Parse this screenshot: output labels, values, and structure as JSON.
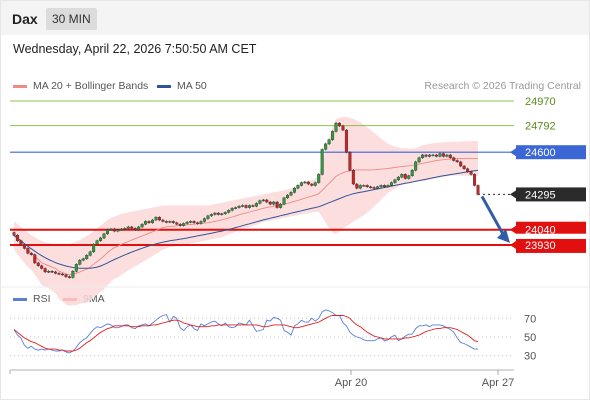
{
  "header": {
    "symbol": "Dax",
    "interval": "30 MIN",
    "datetime": "Wednesday, April 22, 2026 7:50:50 AM CET"
  },
  "legend": {
    "ma20": "MA 20 + Bollinger Bands",
    "ma50": "MA 50",
    "credit": "Research © 2026 Trading Central",
    "colors": {
      "ma20": "#f08a84",
      "ma50": "#2f5596",
      "bands": "#fcd8d8"
    }
  },
  "rsi_legend": {
    "rsi": "RSI",
    "ma9": "9MA",
    "colors": {
      "rsi": "#5a7fd6",
      "ma9": "#e02020"
    }
  },
  "chart_data": [
    {
      "type": "candlestick",
      "title": "",
      "ylim": [
        23655,
        25035
      ],
      "price_levels": [
        {
          "value": 24970,
          "label": "24970",
          "style": "resistance",
          "color": "#8bc34a"
        },
        {
          "value": 24792,
          "label": "24792",
          "style": "resistance",
          "color": "#8bc34a"
        },
        {
          "value": 24600,
          "label": "24600",
          "style": "pivot",
          "color": "#3a66d6"
        },
        {
          "value": 24295,
          "label": "24295",
          "style": "last",
          "color": "#2b2b2b"
        },
        {
          "value": 24040,
          "label": "24040",
          "style": "support",
          "color": "#e01010"
        },
        {
          "value": 23930,
          "label": "23930",
          "style": "support",
          "color": "#e01010"
        }
      ],
      "x_ticks": [
        "Apr 20",
        "Apr 27"
      ],
      "close": [
        24000,
        23960,
        23930,
        23905,
        23870,
        23860,
        23800,
        23780,
        23760,
        23735,
        23740,
        23735,
        23725,
        23720,
        23715,
        23700,
        23695,
        23740,
        23790,
        23820,
        23830,
        23855,
        23880,
        23935,
        23960,
        23980,
        24010,
        24040,
        24045,
        24030,
        24040,
        24045,
        24050,
        24060,
        24050,
        24040,
        24060,
        24080,
        24100,
        24090,
        24110,
        24130,
        24110,
        24100,
        24095,
        24100,
        24090,
        24080,
        24070,
        24085,
        24095,
        24100,
        24090,
        24085,
        24100,
        24120,
        24140,
        24150,
        24160,
        24150,
        24155,
        24165,
        24180,
        24195,
        24200,
        24210,
        24215,
        24200,
        24215,
        24210,
        24230,
        24250,
        24255,
        24240,
        24225,
        24240,
        24200,
        24225,
        24270,
        24290,
        24310,
        24340,
        24360,
        24380,
        24385,
        24370,
        24360,
        24380,
        24440,
        24620,
        24660,
        24690,
        24750,
        24810,
        24790,
        24760,
        24600,
        24470,
        24370,
        24340,
        24360,
        24360,
        24350,
        24345,
        24340,
        24350,
        24360,
        24350,
        24360,
        24380,
        24400,
        24420,
        24440,
        24410,
        24430,
        24470,
        24530,
        24560,
        24580,
        24570,
        24580,
        24580,
        24570,
        24590,
        24570,
        24580,
        24560,
        24540,
        24530,
        24500,
        24480,
        24460,
        24440,
        24360,
        24295
      ],
      "ma20": [
        24000,
        23970,
        23945,
        23920,
        23895,
        23875,
        23850,
        23825,
        23800,
        23790,
        23780,
        23770,
        23760,
        23740,
        23730,
        23720,
        23715,
        23720,
        23725,
        23735,
        23745,
        23755,
        23770,
        23790,
        23810,
        23830,
        23850,
        23875,
        23895,
        23910,
        23920,
        23935,
        23945,
        23955,
        23965,
        23975,
        23985,
        23995,
        24005,
        24015,
        24025,
        24035,
        24045,
        24055,
        24060,
        24065,
        24065,
        24068,
        24070,
        24072,
        24075,
        24078,
        24080,
        24082,
        24085,
        24088,
        24090,
        24095,
        24100,
        24105,
        24110,
        24118,
        24125,
        24132,
        24140,
        24148,
        24155,
        24160,
        24168,
        24175,
        24180,
        24188,
        24195,
        24200,
        24205,
        24210,
        24215,
        24220,
        24225,
        24230,
        24238,
        24245,
        24252,
        24260,
        24268,
        24275,
        24282,
        24290,
        24300,
        24325,
        24350,
        24375,
        24400,
        24425,
        24440,
        24452,
        24460,
        24465,
        24470,
        24472,
        24472,
        24472,
        24472,
        24472,
        24473,
        24475,
        24478,
        24480,
        24483,
        24486,
        24490,
        24493,
        24496,
        24499,
        24502,
        24505,
        24510,
        24515,
        24520,
        24525,
        24530,
        24535,
        24540,
        24543,
        24546,
        24549,
        24551,
        24553,
        24554,
        24554,
        24554,
        24554,
        24554,
        24554,
        24554
      ],
      "ma50": [
        24000,
        23980,
        23960,
        23940,
        23920,
        23902,
        23885,
        23868,
        23852,
        23838,
        23825,
        23813,
        23802,
        23793,
        23785,
        23778,
        23772,
        23767,
        23764,
        23762,
        23761,
        23761,
        23762,
        23765,
        23770,
        23778,
        23788,
        23800,
        23813,
        23825,
        23836,
        23847,
        23858,
        23868,
        23878,
        23888,
        23897,
        23906,
        23915,
        23923,
        23931,
        23938,
        23944,
        23950,
        23955,
        23960,
        23964,
        23968,
        23972,
        23976,
        23980,
        23985,
        23990,
        23995,
        24000,
        24005,
        24010,
        24015,
        24020,
        24025,
        24030,
        24036,
        24042,
        24048,
        24055,
        24062,
        24069,
        24076,
        24083,
        24090,
        24097,
        24104,
        24111,
        24117,
        24123,
        24129,
        24135,
        24141,
        24147,
        24153,
        24159,
        24165,
        24171,
        24177,
        24183,
        24189,
        24195,
        24200,
        24206,
        24215,
        24225,
        24235,
        24245,
        24255,
        24265,
        24275,
        24285,
        24292,
        24300,
        24305,
        24310,
        24315,
        24320,
        24325,
        24330,
        24335,
        24340,
        24345,
        24350,
        24355,
        24360,
        24365,
        24370,
        24375,
        24380,
        24385,
        24390,
        24395,
        24400,
        24405,
        24410,
        24415,
        24420,
        24425,
        24430,
        24434,
        24438,
        24442,
        24446,
        24450,
        24454,
        24458,
        24462,
        24466,
        24470
      ],
      "bb_upper": [
        24100,
        24080,
        24060,
        24040,
        24020,
        24000,
        23985,
        23970,
        23960,
        23950,
        23945,
        23940,
        23940,
        23940,
        23940,
        23940,
        23940,
        23945,
        23955,
        23965,
        23980,
        23995,
        24010,
        24030,
        24050,
        24070,
        24090,
        24110,
        24125,
        24135,
        24145,
        24155,
        24160,
        24165,
        24170,
        24175,
        24180,
        24185,
        24190,
        24195,
        24200,
        24205,
        24210,
        24215,
        24215,
        24215,
        24215,
        24215,
        24215,
        24215,
        24215,
        24215,
        24215,
        24215,
        24215,
        24215,
        24215,
        24220,
        24225,
        24230,
        24235,
        24240,
        24245,
        24250,
        24255,
        24260,
        24265,
        24270,
        24275,
        24280,
        24285,
        24290,
        24295,
        24300,
        24305,
        24310,
        24315,
        24320,
        24325,
        24330,
        24340,
        24350,
        24360,
        24370,
        24380,
        24390,
        24400,
        24410,
        24430,
        24520,
        24610,
        24700,
        24780,
        24840,
        24850,
        24855,
        24855,
        24850,
        24840,
        24830,
        24815,
        24800,
        24780,
        24760,
        24740,
        24720,
        24700,
        24680,
        24660,
        24650,
        24640,
        24635,
        24630,
        24628,
        24626,
        24625,
        24630,
        24640,
        24650,
        24655,
        24660,
        24665,
        24668,
        24670,
        24672,
        24673,
        24674,
        24675,
        24676,
        24677,
        24678,
        24679,
        24680,
        24680,
        24680
      ],
      "bb_lower": [
        23900,
        23860,
        23830,
        23800,
        23770,
        23750,
        23715,
        23680,
        23640,
        23630,
        23615,
        23600,
        23580,
        23540,
        23520,
        23500,
        23490,
        23495,
        23495,
        23505,
        23510,
        23515,
        23530,
        23550,
        23570,
        23590,
        23610,
        23640,
        23665,
        23685,
        23695,
        23715,
        23730,
        23745,
        23760,
        23775,
        23790,
        23805,
        23820,
        23835,
        23850,
        23865,
        23880,
        23895,
        23905,
        23915,
        23915,
        23921,
        23925,
        23929,
        23935,
        23941,
        23945,
        23949,
        23955,
        23961,
        23965,
        23970,
        23975,
        23980,
        23985,
        23996,
        24005,
        24014,
        24025,
        24036,
        24045,
        24050,
        24061,
        24070,
        24075,
        24086,
        24095,
        24100,
        24105,
        24110,
        24115,
        24120,
        24125,
        24130,
        24136,
        24140,
        24144,
        24150,
        24156,
        24160,
        24164,
        24170,
        24170,
        24130,
        24090,
        24050,
        24020,
        24010,
        24030,
        24049,
        24065,
        24080,
        24100,
        24114,
        24129,
        24144,
        24164,
        24184,
        24206,
        24230,
        24256,
        24280,
        24306,
        24322,
        24340,
        24351,
        24362,
        24370,
        24378,
        24385,
        24390,
        24390,
        24390,
        24395,
        24400,
        24405,
        24412,
        24416,
        24420,
        24425,
        24428,
        24431,
        24432,
        24431,
        24430,
        24429,
        24428,
        24428,
        24428
      ]
    },
    {
      "type": "line",
      "title": "RSI",
      "ylim": [
        0,
        100
      ],
      "yticks": [
        30,
        50,
        70
      ],
      "x_ticks": [
        "Apr 20",
        "Apr 27"
      ],
      "series": [
        {
          "name": "RSI",
          "values": [
            58,
            52,
            49,
            41,
            38,
            40,
            37,
            36,
            37,
            36,
            37,
            36,
            35,
            35,
            36,
            34,
            33,
            35,
            39,
            44,
            47,
            49,
            54,
            58,
            61,
            60,
            62,
            64,
            63,
            60,
            60,
            61,
            63,
            63,
            60,
            59,
            62,
            63,
            64,
            62,
            65,
            68,
            71,
            73,
            74,
            66,
            72,
            70,
            60,
            57,
            61,
            63,
            59,
            57,
            64,
            62,
            64,
            66,
            67,
            64,
            62,
            65,
            61,
            60,
            61,
            65,
            64,
            63,
            68,
            62,
            56,
            57,
            58,
            68,
            67,
            71,
            70,
            68,
            57,
            55,
            52,
            62,
            64,
            68,
            66,
            66,
            70,
            67,
            70,
            77,
            79,
            78,
            76,
            73,
            73,
            65,
            62,
            55,
            52,
            50,
            49,
            47,
            46,
            46,
            46,
            48,
            49,
            46,
            47,
            50,
            52,
            46,
            48,
            51,
            53,
            53,
            59,
            62,
            62,
            63,
            61,
            63,
            63,
            63,
            62,
            60,
            58,
            55,
            49,
            44,
            43,
            41,
            39,
            37,
            37
          ]
        },
        {
          "name": "9MA",
          "values": [
            58,
            55,
            52,
            49,
            47,
            45,
            44,
            42,
            40,
            38,
            37,
            37,
            37,
            36,
            36,
            35,
            35,
            35,
            36,
            38,
            41,
            44,
            46,
            49,
            52,
            55,
            57,
            59,
            60,
            62,
            62,
            62,
            62,
            62,
            61,
            61,
            61,
            62,
            62,
            62,
            63,
            63,
            64,
            65,
            66,
            67,
            68,
            68,
            67,
            65,
            64,
            63,
            62,
            61,
            61,
            61,
            61,
            62,
            62,
            63,
            63,
            63,
            63,
            63,
            63,
            63,
            63,
            63,
            63,
            63,
            63,
            62,
            61,
            61,
            62,
            63,
            63,
            63,
            63,
            62,
            61,
            60,
            60,
            61,
            62,
            63,
            64,
            65,
            66,
            68,
            70,
            72,
            73,
            73,
            73,
            73,
            72,
            70,
            66,
            63,
            61,
            58,
            55,
            53,
            51,
            50,
            49,
            48,
            48,
            48,
            48,
            48,
            48,
            49,
            49,
            50,
            51,
            52,
            54,
            56,
            57,
            58,
            59,
            59,
            60,
            60,
            60,
            59,
            58,
            56,
            54,
            52,
            49,
            46,
            45
          ]
        }
      ]
    }
  ]
}
